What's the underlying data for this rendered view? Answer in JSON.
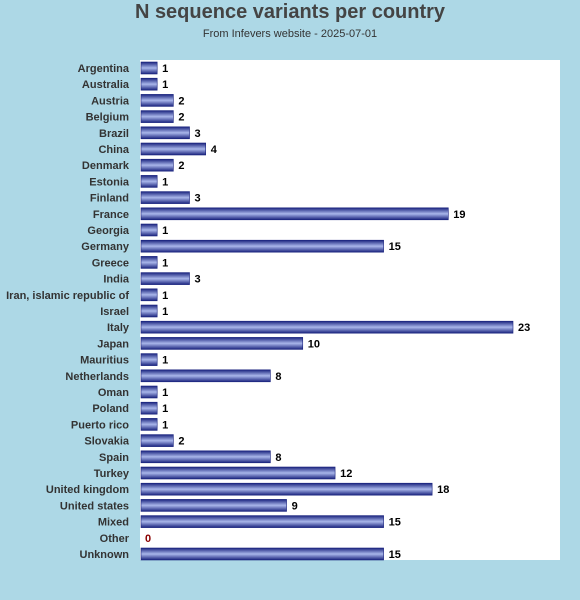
{
  "chart_data": {
    "type": "bar",
    "orientation": "horizontal",
    "title": "N sequence variants per country",
    "subtitle": "From Infevers website - 2025-07-01",
    "xlabel": "",
    "ylabel": "",
    "xlim": [
      0,
      25
    ],
    "grid": false,
    "categories": [
      "Argentina",
      "Australia",
      "Austria",
      "Belgium",
      "Brazil",
      "China",
      "Denmark",
      "Estonia",
      "Finland",
      "France",
      "Georgia",
      "Germany",
      "Greece",
      "India",
      "Iran, islamic republic of",
      "Israel",
      "Italy",
      "Japan",
      "Mauritius",
      "Netherlands",
      "Oman",
      "Poland",
      "Puerto rico",
      "Slovakia",
      "Spain",
      "Turkey",
      "United kingdom",
      "United states",
      "Mixed",
      "Other",
      "Unknown"
    ],
    "values": [
      1,
      1,
      2,
      2,
      3,
      4,
      2,
      1,
      3,
      19,
      1,
      15,
      1,
      3,
      1,
      1,
      23,
      10,
      1,
      8,
      1,
      1,
      1,
      2,
      8,
      12,
      18,
      9,
      15,
      0,
      15
    ]
  },
  "colors": {
    "background": "#add8e6",
    "plot_area": "#ffffff",
    "bar_dark": "#1a237e",
    "bar_light": "#a9b6ea",
    "value_label": "#000000",
    "zero_label": "#8b0000",
    "category_label": "#333333"
  }
}
